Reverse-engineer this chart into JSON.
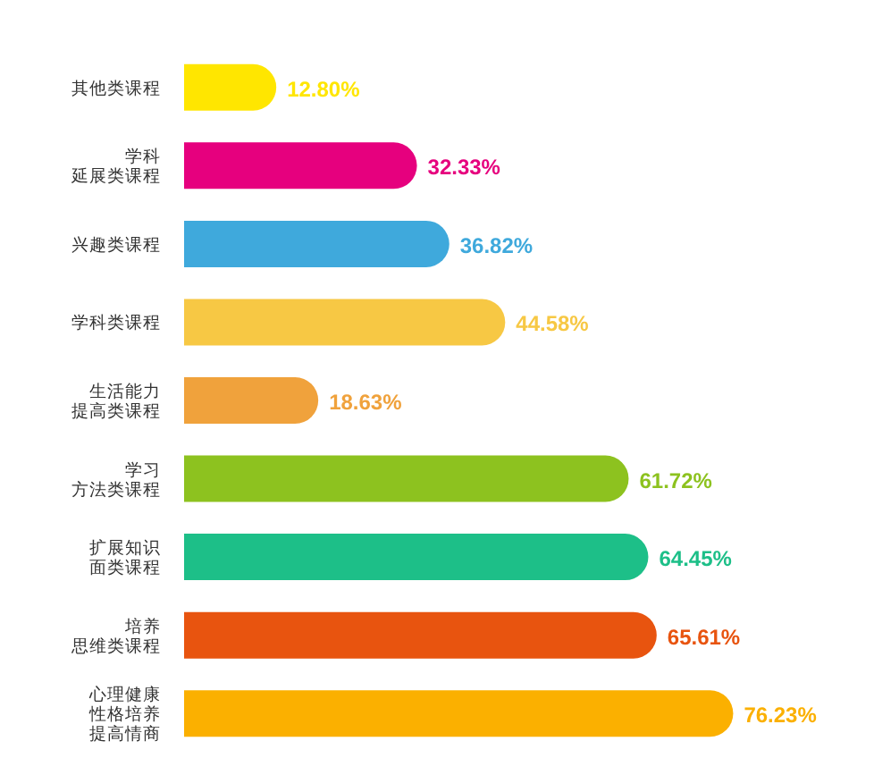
{
  "chart_data": {
    "type": "bar",
    "orientation": "horizontal",
    "categories": [
      "其他类课程",
      "学科延展类课程",
      "兴趣类课程",
      "学科类课程",
      "生活能力提高类课程",
      "学习方法类课程",
      "扩展知识面类课程",
      "培养思维类课程",
      "心理健康性格培养提高情商"
    ],
    "values": [
      12.8,
      32.33,
      36.82,
      44.58,
      18.63,
      61.72,
      64.45,
      65.61,
      76.23
    ],
    "value_labels": [
      "12.80%",
      "32.33%",
      "36.82%",
      "44.58%",
      "18.63%",
      "61.72%",
      "64.45%",
      "65.61%",
      "76.23%"
    ],
    "colors": [
      "#ffe600",
      "#e6007e",
      "#3fa9dc",
      "#f7c844",
      "#f0a23c",
      "#8dc21f",
      "#1dbf88",
      "#e8540f",
      "#fbb000"
    ]
  }
}
